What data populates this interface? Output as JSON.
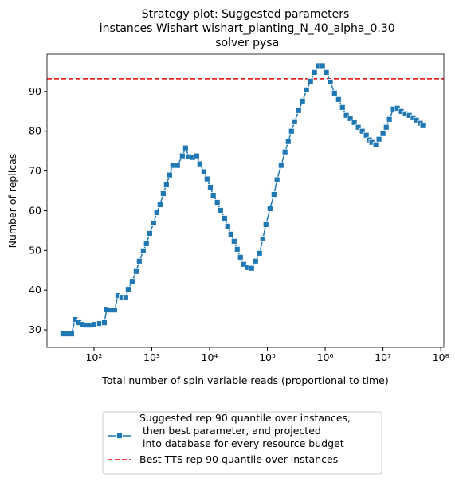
{
  "chart_data": {
    "type": "line",
    "title": "Strategy plot: Suggested parameters\n instances Wishart wishart_planting_N_40_alpha_0.30\n solver pysa",
    "x_label": "Total number of spin variable reads (proportional to time)",
    "y_label": "Number of replicas",
    "x_scale": "log",
    "xlim": [
      15.4,
      113000000
    ],
    "ylim": [
      25.6,
      99.4
    ],
    "xticks": [
      {
        "value": 100,
        "label": "10²"
      },
      {
        "value": 1000,
        "label": "10³"
      },
      {
        "value": 10000,
        "label": "10⁴"
      },
      {
        "value": 100000,
        "label": "10⁵"
      },
      {
        "value": 1000000,
        "label": "10⁶"
      },
      {
        "value": 10000000,
        "label": "10⁷"
      },
      {
        "value": 100000000,
        "label": "10⁸"
      }
    ],
    "yticks": [
      30,
      40,
      50,
      60,
      70,
      80,
      90
    ],
    "grid": false,
    "legend": "below",
    "series": [
      {
        "name": "Suggested rep 90 quantile over instances,\n then best parameter, and projected\n into database for every resource budget",
        "color": "#1f77b4",
        "marker": "square",
        "x": [
          29,
          35,
          41,
          47,
          55,
          64,
          75,
          88,
          103,
          125,
          151,
          166,
          195,
          228,
          259,
          303,
          355,
          391,
          458,
          537,
          609,
          714,
          808,
          920,
          1080,
          1220,
          1390,
          1580,
          1790,
          2040,
          2310,
          2790,
          3380,
          3840,
          4360,
          5100,
          5980,
          6790,
          7960,
          9040,
          10300,
          11600,
          13600,
          15500,
          18200,
          20600,
          23400,
          26600,
          30100,
          34200,
          38900,
          45500,
          53300,
          62500,
          73300,
          83200,
          94400,
          111000,
          130000,
          147000,
          173000,
          202000,
          230000,
          261000,
          296000,
          347000,
          406000,
          476000,
          558000,
          653000,
          766000,
          898000,
          1050000,
          1230000,
          1450000,
          1700000,
          1990000,
          2320000,
          2720000,
          3190000,
          3740000,
          4390000,
          5140000,
          5840000,
          6410000,
          7520000,
          8530000,
          10000000,
          11400000,
          12900000,
          15100000,
          17700000,
          20700000,
          24300000,
          28500000,
          33300000,
          37900000,
          44400000,
          48900000
        ],
        "values": [
          29,
          29,
          29,
          32.6,
          31.8,
          31.4,
          31.2,
          31.2,
          31.4,
          31.6,
          31.8,
          35.2,
          35,
          35,
          38.6,
          38.2,
          38.2,
          40.2,
          42.2,
          44.7,
          47.3,
          49.9,
          51.7,
          54.3,
          56.9,
          59.5,
          61.5,
          64.3,
          66.5,
          69,
          71.4,
          71.4,
          73.8,
          75.8,
          73.6,
          73.4,
          73.8,
          71.8,
          69.8,
          68,
          65.9,
          63.9,
          62.1,
          60.1,
          58.1,
          56.1,
          54.1,
          52.3,
          50.3,
          48.3,
          46.5,
          45.7,
          45.5,
          47.3,
          49.3,
          52.9,
          56.5,
          60.5,
          64.1,
          67.8,
          71.4,
          74.8,
          77.4,
          80,
          82.4,
          85.2,
          87.6,
          90.4,
          92.6,
          94.8,
          96.5,
          96.5,
          94.8,
          92.4,
          89.6,
          88,
          86,
          84,
          83.2,
          82.2,
          81,
          80,
          79,
          77.8,
          77.2,
          76.6,
          78,
          79.4,
          81,
          83,
          85.6,
          85.8,
          85,
          84.4,
          84,
          83.4,
          82.8,
          82,
          81.4
        ]
      }
    ],
    "hlines": [
      {
        "name": "Best TTS rep 90 quantile over instances",
        "value": 93.2,
        "color": "#e00000",
        "style": "dashed"
      }
    ]
  }
}
